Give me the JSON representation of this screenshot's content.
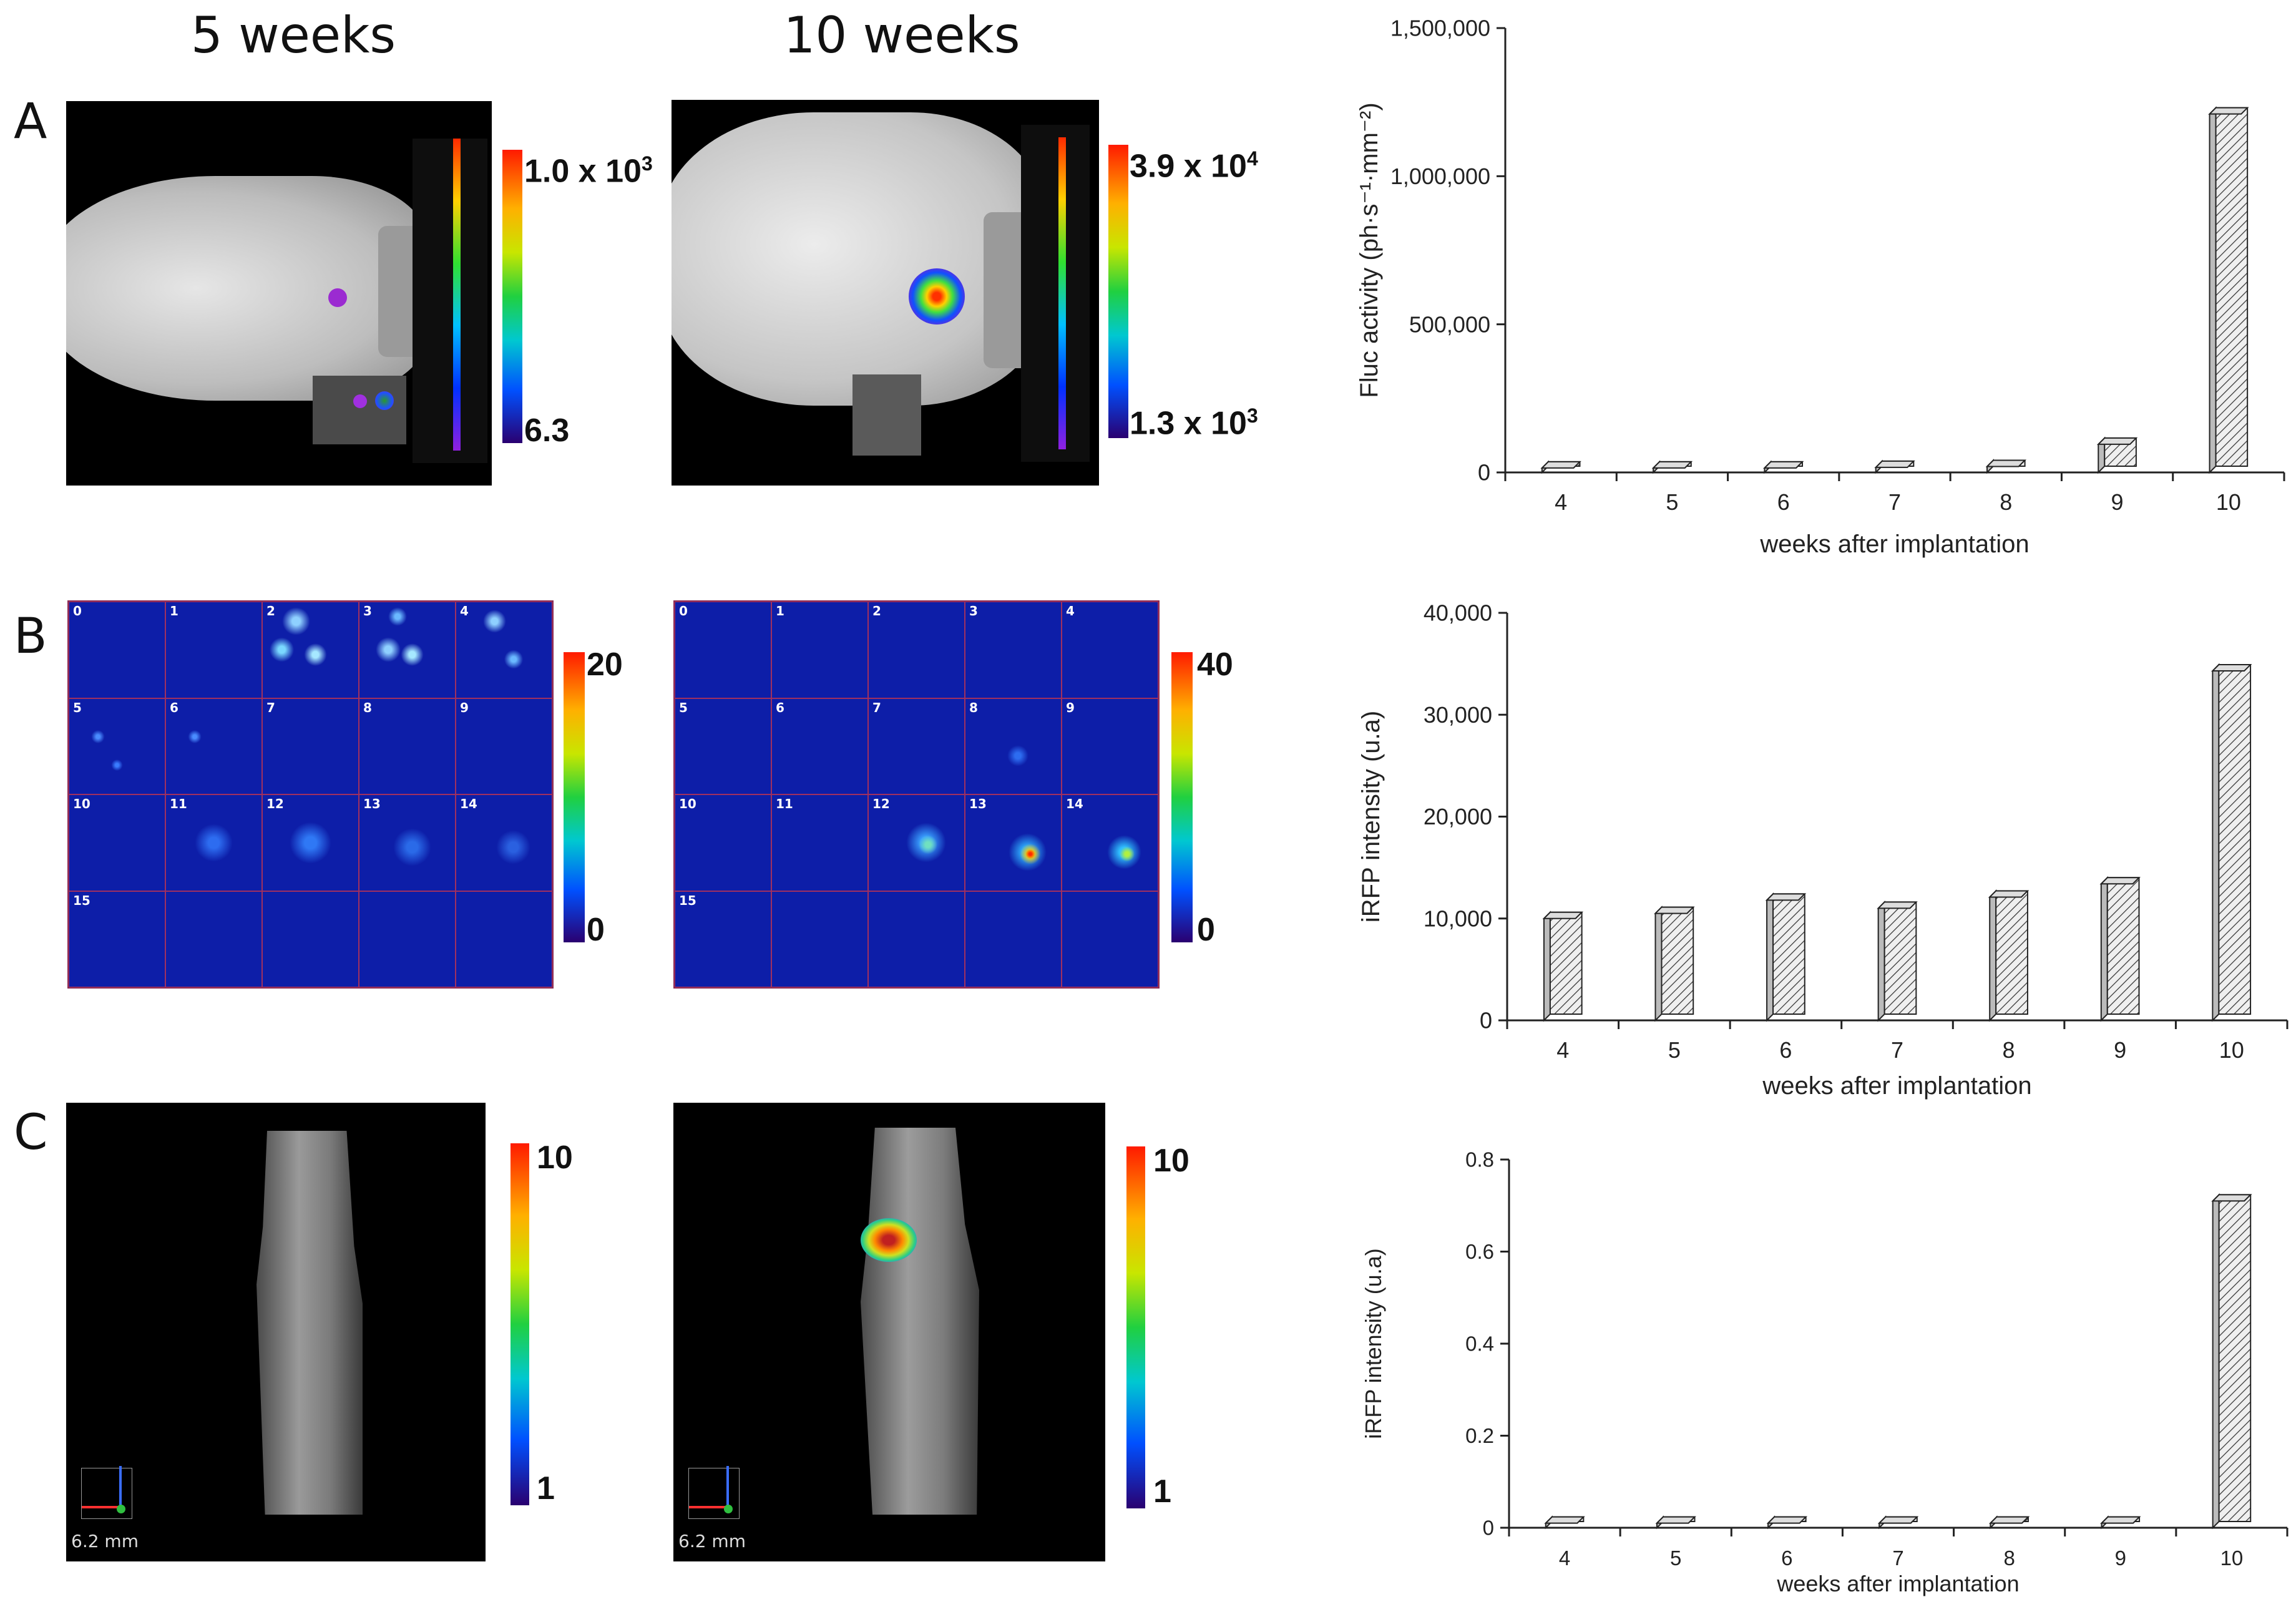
{
  "column_titles": [
    "5 weeks",
    "10 weeks"
  ],
  "row_labels": [
    "A",
    "B",
    "C"
  ],
  "colorbars": {
    "a_left": {
      "max": "1.0 x 10",
      "max_exp": "3",
      "min": "6.3"
    },
    "a_right": {
      "max": "3.9 x 10",
      "max_exp": "4",
      "min": "1.3 x 10",
      "min_exp": "3"
    },
    "b_left": {
      "max": "20",
      "min": "0"
    },
    "b_right": {
      "max": "40",
      "min": "0"
    },
    "c_left": {
      "max": "10",
      "min": "1"
    },
    "c_right": {
      "max": "10",
      "min": "1"
    }
  },
  "grid_cells": [
    "0",
    "1",
    "2",
    "3",
    "4",
    "5",
    "6",
    "7",
    "8",
    "9",
    "10",
    "11",
    "12",
    "13",
    "14",
    "15"
  ],
  "scale_label": "6.2 mm",
  "colors": {
    "bar_fill": "#e8e8e8",
    "bar_stroke": "#222",
    "axis": "#222"
  },
  "chart_data": [
    {
      "type": "bar",
      "categories": [
        "4",
        "5",
        "6",
        "7",
        "8",
        "9",
        "10"
      ],
      "values": [
        15000,
        15000,
        15000,
        17000,
        20000,
        95000,
        1210000
      ],
      "xlabel": "weeks after implantation",
      "ylabel": "Fluc activity (ph·s⁻¹·mm⁻²)",
      "ylim": [
        0,
        1500000
      ],
      "yticks": [
        0,
        500000,
        1000000,
        1500000
      ],
      "ytick_labels": [
        "0",
        "500,000",
        "1,000,000",
        "1,500,000"
      ]
    },
    {
      "type": "bar",
      "categories": [
        "4",
        "5",
        "6",
        "7",
        "8",
        "9",
        "10"
      ],
      "values": [
        10000,
        10500,
        11800,
        11000,
        12100,
        13400,
        34300
      ],
      "xlabel": "weeks after implantation",
      "ylabel": "iRFP intensity (u.a)",
      "ylim": [
        0,
        40000
      ],
      "yticks": [
        0,
        10000,
        20000,
        30000,
        40000
      ],
      "ytick_labels": [
        "0",
        "10,000",
        "20,000",
        "30,000",
        "40,000"
      ]
    },
    {
      "type": "bar",
      "categories": [
        "4",
        "5",
        "6",
        "7",
        "8",
        "9",
        "10"
      ],
      "values": [
        0.01,
        0.01,
        0.01,
        0.01,
        0.01,
        0.01,
        0.71
      ],
      "xlabel": "weeks after implantation",
      "ylabel": "iRFP intensity (u.a)",
      "ylim": [
        0,
        0.8
      ],
      "yticks": [
        0,
        0.2,
        0.4,
        0.6,
        0.8
      ],
      "ytick_labels": [
        "0",
        "0.2",
        "0.4",
        "0.6",
        "0.8"
      ]
    }
  ]
}
